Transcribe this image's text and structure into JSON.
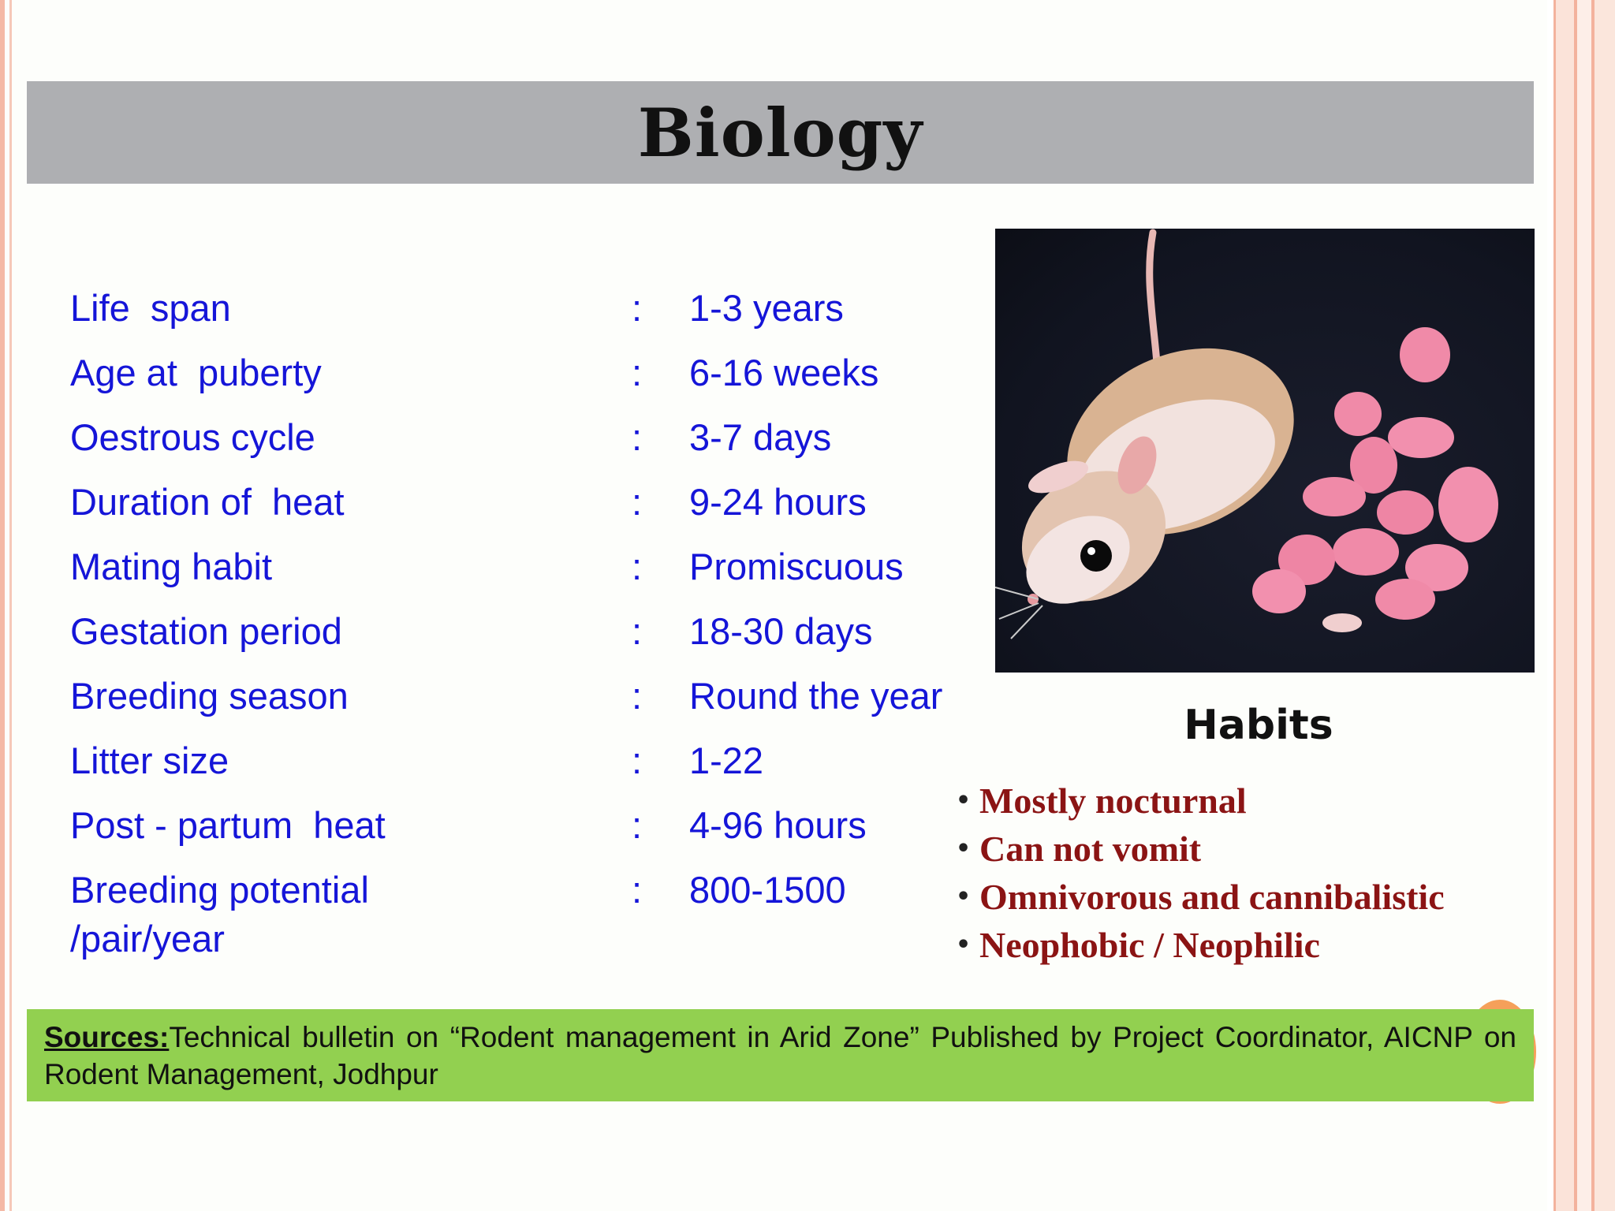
{
  "title": "Biology",
  "biology": {
    "rows": [
      {
        "label": "Life  span",
        "colon": ":",
        "value": "1-3 years"
      },
      {
        "label": "Age at  puberty",
        "colon": ":",
        "value": "6-16 weeks"
      },
      {
        "label": "Oestrous cycle",
        "colon": ":",
        "value": "3-7 days"
      },
      {
        "label": "Duration of  heat",
        "colon": ":",
        "value": "9-24 hours"
      },
      {
        "label": "Mating habit",
        "colon": ":",
        "value": "Promiscuous"
      },
      {
        "label": "Gestation period",
        "colon": ":",
        "value": "18-30 days"
      },
      {
        "label": "Breeding season",
        "colon": ":",
        "value": "Round the year"
      },
      {
        "label": "Litter size",
        "colon": ":",
        "value": "1-22"
      },
      {
        "label": "Post - partum  heat",
        "colon": ":",
        "value": "4-96 hours"
      },
      {
        "label": "Breeding potential\n/pair/year",
        "colon": ":",
        "value": "800-1500"
      }
    ]
  },
  "habits": {
    "title": "Habits",
    "bullet": "•",
    "items": [
      "Mostly nocturnal",
      "Can not vomit",
      "Omnivorous and cannibalistic",
      "Neophobic / Neophilic"
    ]
  },
  "sources": {
    "label": "Sources:",
    "text": "Technical bulletin on “Rodent management in Arid Zone” Published by Project Coordinator, AICNP on Rodent Management, Jodhpur"
  },
  "colors": {
    "title_bar": "#aeafb2",
    "biology_text": "#1515d8",
    "habits_text": "#8b1414",
    "sources_bg": "#92d050",
    "accent_orange": "#f5a05a"
  }
}
